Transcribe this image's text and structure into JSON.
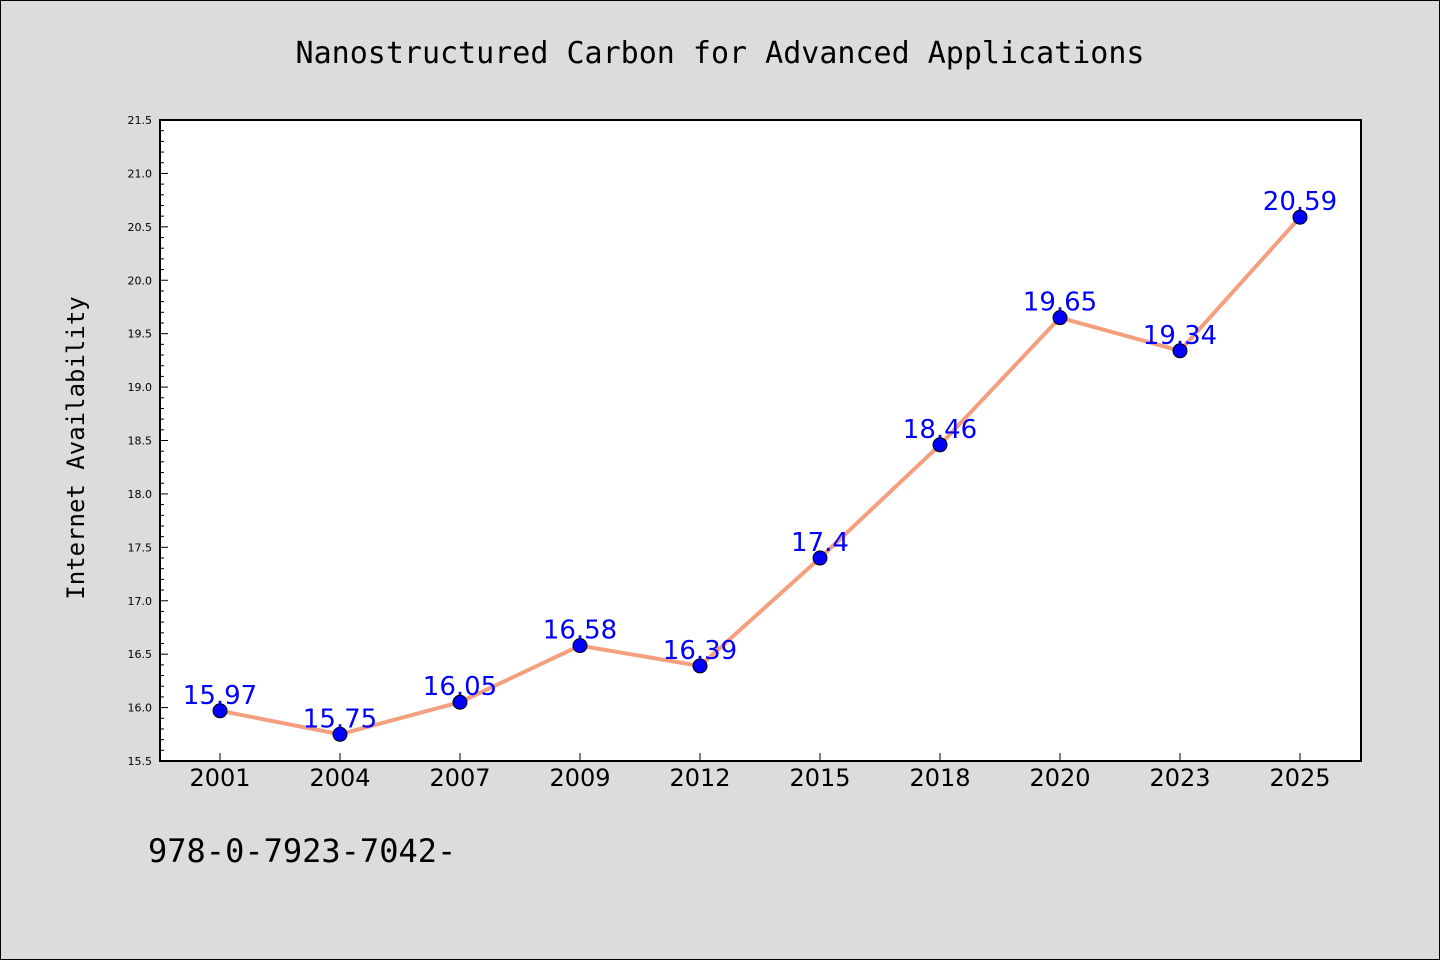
{
  "chart_data": {
    "type": "line",
    "title": "Nanostructured Carbon for Advanced Applications",
    "xlabel": "",
    "ylabel": "Internet Availability",
    "categories": [
      "2001",
      "2004",
      "2007",
      "2009",
      "2012",
      "2015",
      "2018",
      "2020",
      "2023",
      "2025"
    ],
    "series": [
      {
        "values": [
          15.97,
          15.75,
          16.05,
          16.58,
          16.39,
          17.4,
          18.46,
          19.65,
          19.34,
          20.59
        ],
        "data_labels": [
          "15.97",
          "15.75",
          "16.05",
          "16.58",
          "16.39",
          "17.4",
          "18.46",
          "19.65",
          "19.34",
          "20.59"
        ]
      }
    ],
    "ylim": [
      15.5,
      21.5
    ],
    "yticks": [
      "15.5",
      "16.0",
      "16.5",
      "17.0",
      "17.5",
      "18.0",
      "18.5",
      "19.0",
      "19.5",
      "20.0",
      "20.5",
      "21.0",
      "21.5"
    ],
    "grid": false,
    "legend": "none",
    "colors": {
      "line": "#f4a07f",
      "marker": "#0000ff",
      "data_label": "#0000ff",
      "plot_background": "#ffffff",
      "figure_background": "#dcdcdc"
    }
  },
  "footer": {
    "isbn": "978-0-7923-7042-"
  }
}
